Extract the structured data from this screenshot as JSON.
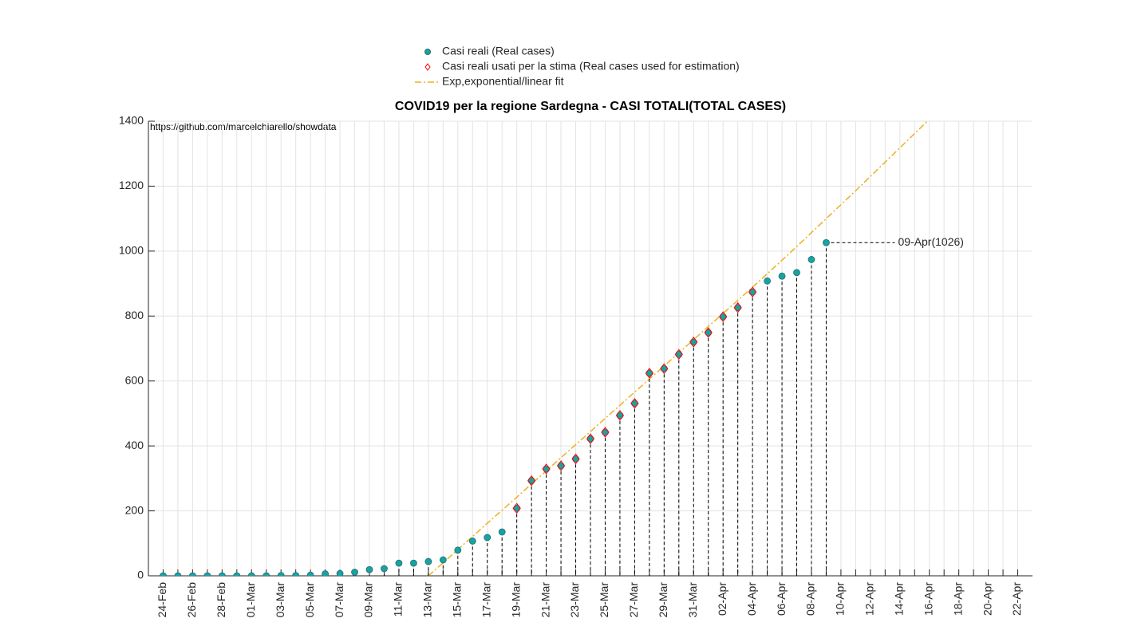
{
  "chart_data": {
    "type": "scatter",
    "title": "COVID19 per la regione Sardegna - CASI TOTALI(TOTAL CASES)",
    "source_note": "https://github.com/marcelchiarello/showdata",
    "annotation": "09-Apr(1026)",
    "categories": [
      "24-Feb",
      null,
      "26-Feb",
      null,
      "28-Feb",
      null,
      "01-Mar",
      null,
      "03-Mar",
      null,
      "05-Mar",
      null,
      "07-Mar",
      null,
      "09-Mar",
      null,
      "11-Mar",
      null,
      "13-Mar",
      null,
      "15-Mar",
      null,
      "17-Mar",
      null,
      "19-Mar",
      null,
      "21-Mar",
      null,
      "23-Mar",
      null,
      "25-Mar",
      null,
      "27-Mar",
      null,
      "29-Mar",
      null,
      "31-Mar",
      null,
      "02-Apr",
      null,
      "04-Apr",
      null,
      "06-Apr",
      null,
      "08-Apr",
      null,
      "10-Apr",
      null,
      "12-Apr",
      null,
      "14-Apr",
      null,
      "16-Apr",
      null,
      "18-Apr",
      null,
      "20-Apr",
      null,
      "22-Apr"
    ],
    "series": [
      {
        "name": "Casi reali (Real cases)",
        "style": "dot",
        "color": "#17a2a4",
        "values": [
          0,
          0,
          0,
          0,
          0,
          0,
          0,
          0,
          1,
          1,
          2,
          6,
          7,
          11,
          19,
          22,
          39,
          39,
          44,
          49,
          79,
          107,
          118,
          135,
          208,
          293,
          329,
          339,
          360,
          422,
          442,
          494,
          531,
          624,
          638,
          682,
          720,
          749,
          798,
          826,
          874,
          908,
          923,
          934,
          974,
          1026,
          null,
          null,
          null,
          null,
          null,
          null,
          null,
          null,
          null,
          null,
          null,
          null,
          null
        ]
      },
      {
        "name": "Casi reali usati per la stima (Real cases used for estimation)",
        "style": "diamond",
        "color": "#ff0000",
        "values": [
          null,
          null,
          null,
          null,
          null,
          null,
          null,
          null,
          null,
          null,
          null,
          null,
          null,
          null,
          null,
          null,
          null,
          null,
          null,
          null,
          null,
          null,
          null,
          null,
          208,
          293,
          329,
          339,
          360,
          422,
          442,
          494,
          531,
          624,
          638,
          682,
          720,
          749,
          798,
          826,
          874,
          null,
          null,
          null,
          null,
          null,
          null,
          null,
          null,
          null,
          null,
          null,
          null,
          null,
          null,
          null,
          null,
          null,
          null
        ]
      },
      {
        "name": "Exp,exponential/linear fit",
        "style": "dashdot",
        "color": "#edb120",
        "values": [
          null,
          null,
          null,
          null,
          null,
          null,
          null,
          null,
          null,
          null,
          null,
          null,
          null,
          null,
          null,
          null,
          null,
          null,
          0,
          40,
          81,
          121,
          162,
          202,
          242,
          283,
          323,
          364,
          404,
          444,
          485,
          525,
          566,
          606,
          646,
          687,
          727,
          768,
          808,
          848,
          889,
          930,
          972,
          1014,
          1057,
          1100,
          1143,
          1186,
          1230,
          1274,
          1318,
          1362,
          1406,
          null,
          null,
          null,
          null,
          null,
          null
        ]
      }
    ],
    "ylim": [
      0,
      1400
    ],
    "yticks": [
      0,
      200,
      400,
      600,
      800,
      1000,
      1200,
      1400
    ],
    "grid": true
  }
}
